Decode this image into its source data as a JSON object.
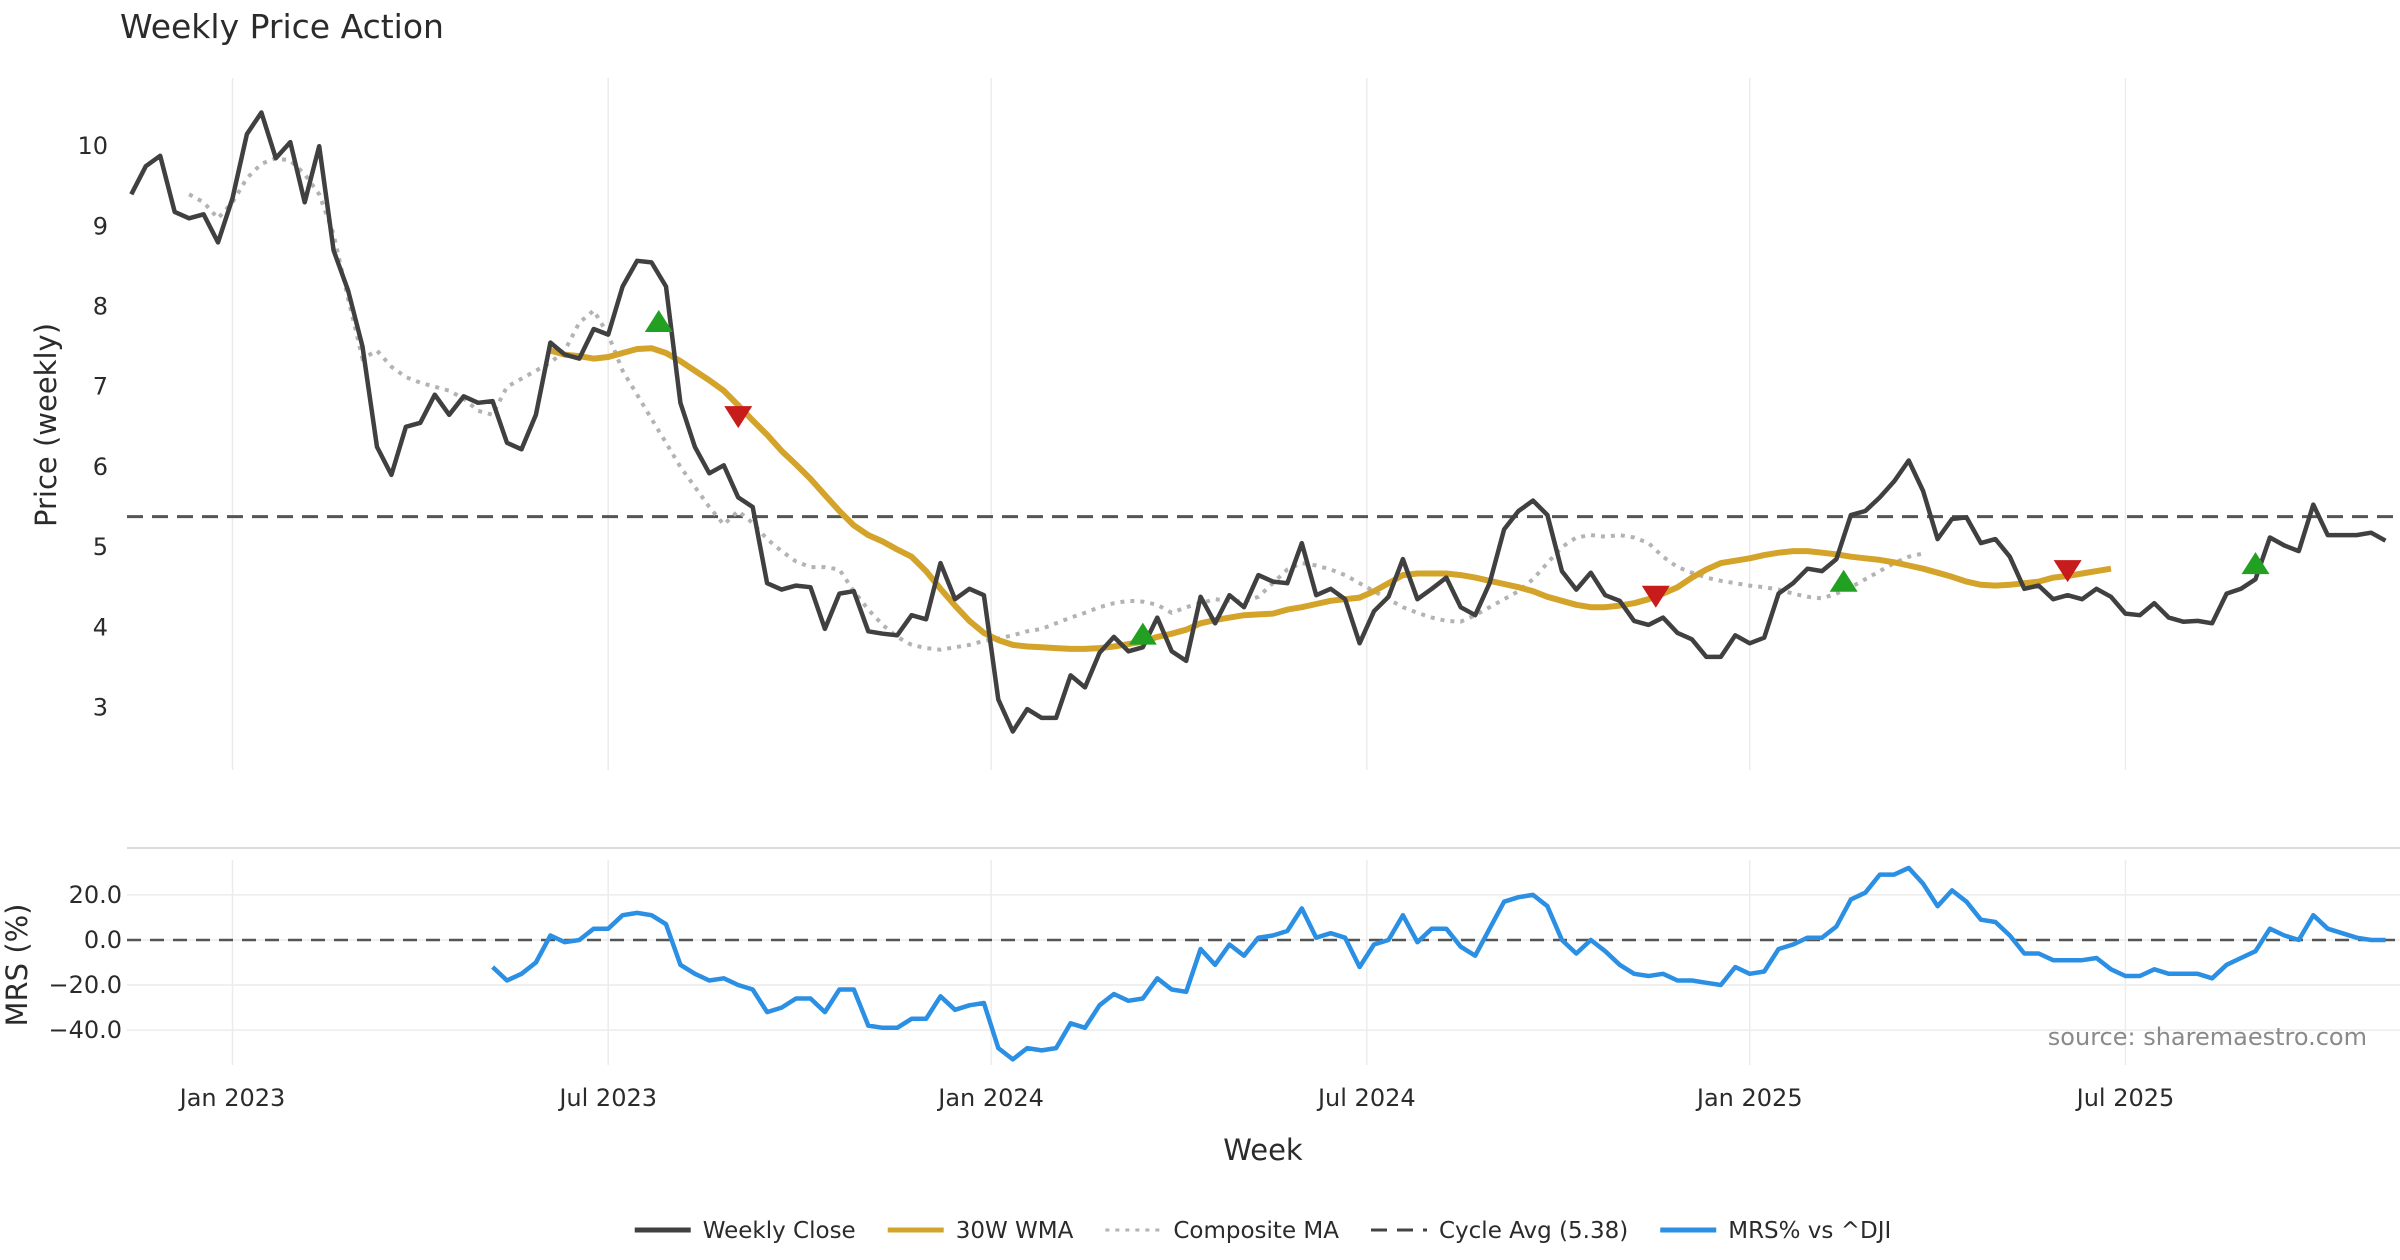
{
  "chart_data": {
    "type": "line",
    "title": "Weekly Price Action",
    "xlabel": "Week",
    "x_ticks": [
      {
        "label": "Jan 2023",
        "week": 0
      },
      {
        "label": "Jul 2023",
        "week": 26
      },
      {
        "label": "Jan 2024",
        "week": 52.5
      },
      {
        "label": "Jul 2024",
        "week": 78.5
      },
      {
        "label": "Jan 2025",
        "week": 105
      },
      {
        "label": "Jul 2025",
        "week": 131
      }
    ],
    "xlim": [
      -7.3,
      150
    ],
    "source": "source: sharemaestro.com",
    "colors": {
      "close": "#404040",
      "wma": "#d4a32a",
      "composite": "#b3b3b3",
      "cycle": "#555555",
      "mrs": "#2b8fe3",
      "buy": "#22a022",
      "sell": "#c81b1b",
      "grid": "#ececec"
    },
    "price_panel": {
      "ylabel": "Price (weekly)",
      "ylim": [
        2.22,
        10.85
      ],
      "y_ticks": [
        3,
        4,
        5,
        6,
        7,
        8,
        9,
        10
      ],
      "cycle_avg": 5.38,
      "series": [
        {
          "name": "Weekly Close",
          "start_week": -7,
          "values": [
            9.4,
            9.75,
            9.88,
            9.18,
            9.1,
            9.15,
            8.8,
            9.35,
            10.15,
            10.42,
            9.85,
            10.05,
            9.3,
            10.0,
            8.7,
            8.2,
            7.5,
            6.25,
            5.9,
            6.5,
            6.55,
            6.9,
            6.65,
            6.88,
            6.8,
            6.82,
            6.3,
            6.22,
            6.65,
            7.55,
            7.4,
            7.35,
            7.72,
            7.65,
            8.25,
            8.57,
            8.55,
            8.25,
            6.8,
            6.25,
            5.92,
            6.02,
            5.62,
            5.5,
            4.55,
            4.47,
            4.52,
            4.5,
            3.98,
            4.42,
            4.45,
            3.95,
            3.92,
            3.9,
            4.15,
            4.1,
            4.8,
            4.35,
            4.48,
            4.4,
            3.1,
            2.7,
            2.98,
            2.87,
            2.87,
            3.4,
            3.25,
            3.68,
            3.88,
            3.7,
            3.75,
            4.12,
            3.7,
            3.58,
            4.38,
            4.05,
            4.4,
            4.25,
            4.65,
            4.57,
            4.55,
            5.05,
            4.4,
            4.48,
            4.35,
            3.8,
            4.2,
            4.38,
            4.85,
            4.35,
            4.48,
            4.62,
            4.25,
            4.15,
            4.55,
            5.22,
            5.45,
            5.58,
            5.4,
            4.7,
            4.47,
            4.68,
            4.4,
            4.33,
            4.08,
            4.03,
            4.12,
            3.93,
            3.85,
            3.63,
            3.63,
            3.9,
            3.8,
            3.87,
            4.42,
            4.55,
            4.73,
            4.7,
            4.85,
            5.4,
            5.45,
            5.62,
            5.82,
            6.08,
            5.7,
            5.1,
            5.35,
            5.37,
            5.05,
            5.1,
            4.88,
            4.48,
            4.52,
            4.35,
            4.4,
            4.35,
            4.48,
            4.38,
            4.17,
            4.15,
            4.3,
            4.12,
            4.07,
            4.08,
            4.05,
            4.42,
            4.48,
            4.6,
            5.12,
            5.02,
            4.95,
            5.53,
            5.15,
            5.15,
            5.15,
            5.18,
            5.08
          ]
        },
        {
          "name": "30W WMA",
          "start_week": 22,
          "values": [
            7.45,
            7.4,
            7.38,
            7.35,
            7.37,
            7.42,
            7.47,
            7.48,
            7.42,
            7.32,
            7.2,
            7.08,
            6.95,
            6.77,
            6.58,
            6.4,
            6.2,
            6.03,
            5.85,
            5.65,
            5.45,
            5.27,
            5.15,
            5.07,
            4.97,
            4.88,
            4.7,
            4.48,
            4.27,
            4.08,
            3.93,
            3.84,
            3.78,
            3.76,
            3.75,
            3.74,
            3.73,
            3.73,
            3.74,
            3.76,
            3.79,
            3.82,
            3.88,
            3.92,
            3.97,
            4.05,
            4.09,
            4.12,
            4.15,
            4.16,
            4.17,
            4.22,
            4.25,
            4.29,
            4.33,
            4.35,
            4.37,
            4.45,
            4.55,
            4.65,
            4.67,
            4.67,
            4.67,
            4.65,
            4.62,
            4.58,
            4.54,
            4.5,
            4.45,
            4.38,
            4.33,
            4.28,
            4.25,
            4.25,
            4.27,
            4.3,
            4.35,
            4.42,
            4.5,
            4.62,
            4.72,
            4.8,
            4.83,
            4.86,
            4.9,
            4.93,
            4.95,
            4.95,
            4.93,
            4.91,
            4.88,
            4.86,
            4.84,
            4.81,
            4.77,
            4.73,
            4.68,
            4.63,
            4.57,
            4.53,
            4.52,
            4.53,
            4.55,
            4.57,
            4.62,
            4.64,
            4.67,
            4.7,
            4.73
          ]
        },
        {
          "name": "Composite MA",
          "start_week": -3,
          "values": [
            9.4,
            9.3,
            9.1,
            9.3,
            9.6,
            9.78,
            9.85,
            9.82,
            9.65,
            9.4,
            8.9,
            8.1,
            7.35,
            7.45,
            7.25,
            7.12,
            7.05,
            7.0,
            6.95,
            6.85,
            6.7,
            6.65,
            7.0,
            7.1,
            7.2,
            7.3,
            7.45,
            7.8,
            7.95,
            7.65,
            7.2,
            6.9,
            6.6,
            6.3,
            6.0,
            5.75,
            5.5,
            5.28,
            5.45,
            5.3,
            5.1,
            4.95,
            4.82,
            4.75,
            4.75,
            4.72,
            4.45,
            4.22,
            4.03,
            3.88,
            3.78,
            3.74,
            3.72,
            3.75,
            3.78,
            3.83,
            3.86,
            3.9,
            3.95,
            3.98,
            4.05,
            4.12,
            4.18,
            4.25,
            4.3,
            4.33,
            4.32,
            4.28,
            4.18,
            4.25,
            4.3,
            4.35,
            4.33,
            4.32,
            4.38,
            4.55,
            4.72,
            4.8,
            4.77,
            4.72,
            4.65,
            4.55,
            4.45,
            4.35,
            4.25,
            4.18,
            4.12,
            4.08,
            4.07,
            4.15,
            4.25,
            4.35,
            4.45,
            4.6,
            4.8,
            5.0,
            5.12,
            5.15,
            5.13,
            5.15,
            5.12,
            5.05,
            4.88,
            4.75,
            4.68,
            4.62,
            4.58,
            4.55,
            4.52,
            4.5,
            4.47,
            4.42,
            4.38,
            4.36,
            4.42,
            4.5,
            4.6,
            4.7,
            4.8,
            4.88,
            4.92
          ]
        }
      ],
      "signals": [
        {
          "type": "buy",
          "week": 29.5,
          "price": 7.82
        },
        {
          "type": "sell",
          "week": 35,
          "price": 6.62
        },
        {
          "type": "buy",
          "week": 63,
          "price": 3.92
        },
        {
          "type": "sell",
          "week": 98.5,
          "price": 4.38
        },
        {
          "type": "buy",
          "week": 111.5,
          "price": 4.58
        },
        {
          "type": "sell",
          "week": 127,
          "price": 4.7
        },
        {
          "type": "buy",
          "week": 140,
          "price": 4.8
        }
      ]
    },
    "mrs_panel": {
      "ylabel": "MRS (%)",
      "ylim": [
        -55.5,
        35.5
      ],
      "y_ticks": [
        20,
        0,
        -20,
        -40
      ],
      "y_tick_labels": [
        "20.0",
        "0.0",
        "−20.0",
        "−40.0"
      ],
      "series": {
        "name": "MRS% vs ^DJI",
        "start_week": 18,
        "values": [
          -12,
          -18,
          -15,
          -10,
          2,
          -1,
          0,
          5,
          5,
          11,
          12,
          11,
          7,
          -11,
          -15,
          -18,
          -17,
          -20,
          -22,
          -32,
          -30,
          -26,
          -26,
          -32,
          -22,
          -22,
          -38,
          -39,
          -39,
          -35,
          -35,
          -25,
          -31,
          -29,
          -28,
          -48,
          -53,
          -48,
          -49,
          -48,
          -37,
          -39,
          -29,
          -24,
          -27,
          -26,
          -17,
          -22,
          -23,
          -4,
          -11,
          -2,
          -7,
          1,
          2,
          4,
          14,
          1,
          3,
          1,
          -12,
          -2,
          0,
          11,
          -1,
          5,
          5,
          -3,
          -7,
          5,
          17,
          19,
          20,
          15,
          0,
          -6,
          0,
          -5,
          -11,
          -15,
          -16,
          -15,
          -18,
          -18,
          -19,
          -20,
          -12,
          -15,
          -14,
          -4,
          -2,
          1,
          1,
          6,
          18,
          21,
          29,
          29,
          32,
          25,
          15,
          22,
          17,
          9,
          8,
          2,
          -6,
          -6,
          -9,
          -9,
          -9,
          -8,
          -13,
          -16,
          -16,
          -13,
          -15,
          -15,
          -15,
          -17,
          -11,
          -8,
          -5,
          5,
          2,
          0,
          11,
          5,
          3,
          1,
          0,
          0
        ]
      }
    },
    "legend": [
      {
        "label": "Weekly Close",
        "style": "solid",
        "color": "#404040"
      },
      {
        "label": "30W WMA",
        "style": "solid",
        "color": "#d4a32a"
      },
      {
        "label": "Composite MA",
        "style": "dotted",
        "color": "#b3b3b3"
      },
      {
        "label": "Cycle Avg (5.38)",
        "style": "dashed",
        "color": "#444444"
      },
      {
        "label": "MRS% vs ^DJI",
        "style": "solid",
        "color": "#2b8fe3"
      }
    ]
  }
}
